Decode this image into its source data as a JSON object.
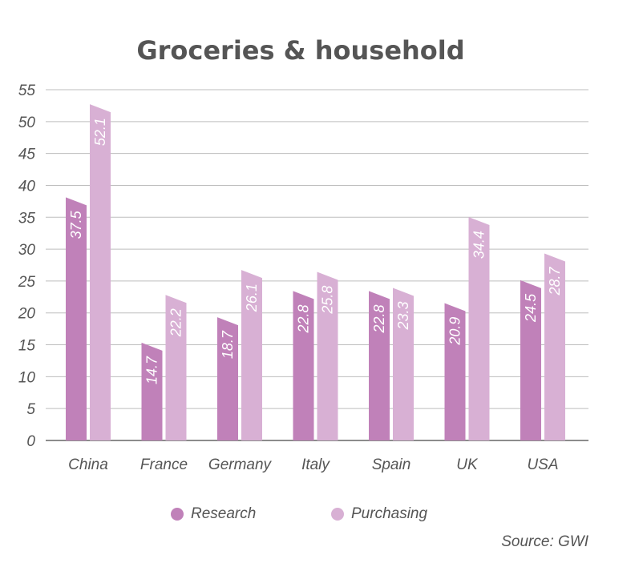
{
  "chart_data": {
    "type": "bar",
    "title": "Groceries & household",
    "categories": [
      "China",
      "France",
      "Germany",
      "Italy",
      "Spain",
      "UK",
      "USA"
    ],
    "series": [
      {
        "name": "Research",
        "color": "#c081b9",
        "values": [
          37.5,
          14.7,
          18.7,
          22.8,
          22.8,
          20.9,
          24.5
        ]
      },
      {
        "name": "Purchasing",
        "color": "#d8b0d4",
        "values": [
          52.1,
          22.2,
          26.1,
          25.8,
          23.3,
          34.4,
          28.7
        ]
      }
    ],
    "yticks": [
      0,
      5,
      10,
      15,
      20,
      25,
      30,
      35,
      40,
      45,
      50,
      55
    ],
    "ylim": [
      0,
      55
    ],
    "xlabel": "",
    "ylabel": "",
    "grid": true,
    "legend_position": "bottom",
    "source": "Source: GWI"
  }
}
